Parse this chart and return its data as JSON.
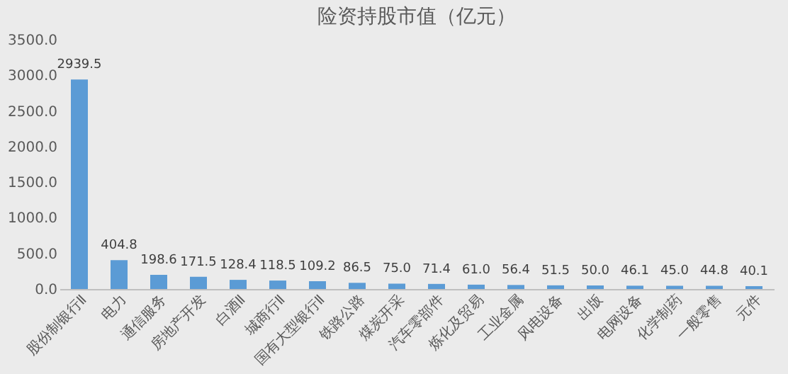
{
  "chart_data": {
    "type": "bar",
    "title": "险资持股市值（亿元）",
    "categories": [
      "股份制银行Ⅱ",
      "电力",
      "通信服务",
      "房地产开发",
      "白酒Ⅱ",
      "城商行Ⅱ",
      "国有大型银行Ⅱ",
      "铁路公路",
      "煤炭开采",
      "汽车零部件",
      "炼化及贸易",
      "工业金属",
      "风电设备",
      "出版",
      "电网设备",
      "化学制药",
      "一般零售",
      "元件"
    ],
    "values": [
      2939.5,
      404.8,
      198.6,
      171.5,
      128.4,
      118.5,
      109.2,
      86.5,
      75.0,
      71.4,
      61.0,
      56.4,
      51.5,
      50.0,
      46.1,
      45.0,
      44.8,
      40.1
    ],
    "value_labels": [
      "2939.5",
      "404.8",
      "198.6",
      "171.5",
      "128.4",
      "118.5",
      "109.2",
      "86.5",
      "75.0",
      "71.4",
      "61.0",
      "56.4",
      "51.5",
      "50.0",
      "46.1",
      "45.0",
      "44.8",
      "40.1"
    ],
    "color": "#5b9bd5",
    "ylim": [
      0,
      3500
    ],
    "yticks": [
      {
        "value": 0,
        "label": "0.0"
      },
      {
        "value": 500,
        "label": "500.0"
      },
      {
        "value": 1000,
        "label": "1000.0"
      },
      {
        "value": 1500,
        "label": "1500.0"
      },
      {
        "value": 2000,
        "label": "2000.0"
      },
      {
        "value": 2500,
        "label": "2500.0"
      },
      {
        "value": 3000,
        "label": "3000.0"
      },
      {
        "value": 3500,
        "label": "3500.0"
      }
    ],
    "grid": false
  }
}
